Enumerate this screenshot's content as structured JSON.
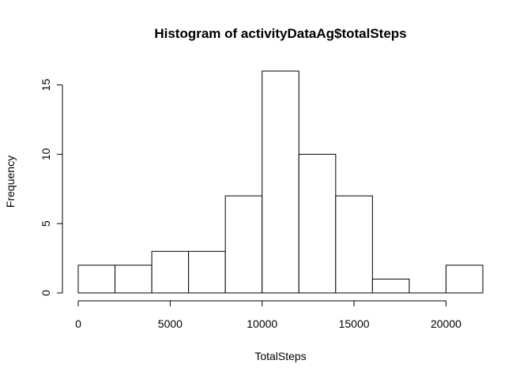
{
  "chart_data": {
    "type": "bar",
    "title": "Histogram of activityDataAg$totalSteps",
    "xlabel": "TotalSteps",
    "ylabel": "Frequency",
    "bins": [
      {
        "from": 0,
        "to": 2000,
        "count": 2
      },
      {
        "from": 2000,
        "to": 4000,
        "count": 2
      },
      {
        "from": 4000,
        "to": 6000,
        "count": 3
      },
      {
        "from": 6000,
        "to": 8000,
        "count": 3
      },
      {
        "from": 8000,
        "to": 10000,
        "count": 7
      },
      {
        "from": 10000,
        "to": 12000,
        "count": 16
      },
      {
        "from": 12000,
        "to": 14000,
        "count": 10
      },
      {
        "from": 14000,
        "to": 16000,
        "count": 7
      },
      {
        "from": 16000,
        "to": 18000,
        "count": 1
      },
      {
        "from": 18000,
        "to": 20000,
        "count": 0
      },
      {
        "from": 20000,
        "to": 22000,
        "count": 2
      }
    ],
    "xlim": [
      0,
      22000
    ],
    "ylim": [
      0,
      16
    ],
    "xticks": [
      {
        "value": 0,
        "label": "0"
      },
      {
        "value": 5000,
        "label": "5000"
      },
      {
        "value": 10000,
        "label": "10000"
      },
      {
        "value": 15000,
        "label": "15000"
      },
      {
        "value": 20000,
        "label": "20000"
      }
    ],
    "yticks": [
      {
        "value": 0,
        "label": "0"
      },
      {
        "value": 5,
        "label": "5"
      },
      {
        "value": 10,
        "label": "10"
      },
      {
        "value": 15,
        "label": "15"
      }
    ],
    "grid": false,
    "bar_color": "#ffffff",
    "edge_color": "#000000"
  }
}
